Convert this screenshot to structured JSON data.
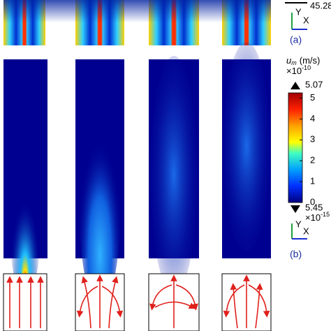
{
  "panel_a": {
    "top_value": "45.28",
    "axis_y": "Y",
    "axis_x": "X",
    "label": "(a)"
  },
  "colorbar": {
    "symbol": "u",
    "subscript": "m",
    "unit": "(m/s)",
    "scale": "×10",
    "scale_exp": "-10",
    "max_label": "5.07",
    "min_label": "5.45",
    "min_scale": "×10",
    "min_scale_exp": "-15",
    "ticks": [
      5,
      4,
      3,
      2,
      1,
      0
    ],
    "lim": [
      0,
      5.25
    ]
  },
  "panel_b": {
    "axis_y": "Y",
    "axis_x": "X",
    "label": "(b)"
  }
}
